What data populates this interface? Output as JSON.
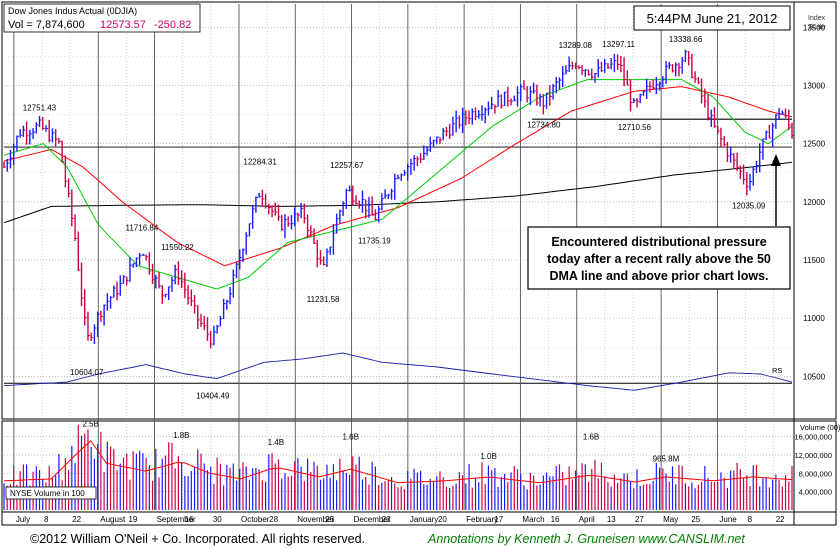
{
  "header": {
    "title": "Dow Jones Indus Actual",
    "symbol": "(0DJIA)",
    "vol_label": "Vol = 7,874,600",
    "price": "12573.57",
    "change": "-250.82",
    "timestamp": "5:44PM June 21, 2012",
    "scale_label_1": "Index",
    "scale_label_2": "Scale"
  },
  "annotation": {
    "line1": "Encountered distributional pressure",
    "line2": "today after a recent rally above the 50",
    "line3": "DMA line and above prior chart lows."
  },
  "footer": {
    "copyright": "©2012 William O'Neil + Co. Incorporated. All rights reserved.",
    "annotations": "Annotations by Kenneth J. Gruneisen www.CANSLIM.net"
  },
  "volume_panel": {
    "legend": "NYSE Volume in 100",
    "axis_title": "Volume (00)"
  },
  "rs_label": "RS",
  "colors": {
    "up_bar": "#1a1aff",
    "down_bar": "#cc0044",
    "ma50": "#00cc00",
    "ma200": "#000000",
    "ma_red": "#ff0000",
    "ma_pink": "#cc44cc",
    "rs_line": "#1a1aaa",
    "change": "#cc0066",
    "footer_green": "#008000"
  },
  "chart_data": {
    "type": "bar",
    "price_axis": {
      "ticks": [
        10500,
        11000,
        11500,
        12000,
        12500,
        13000,
        13500
      ],
      "tick_labels": [
        "10500",
        "11000",
        "11500",
        "12000",
        "12500",
        "13000",
        "13500"
      ],
      "ylim": [
        10150,
        13700
      ]
    },
    "volume_axis": {
      "ticks": [
        4000000,
        8000000,
        12000000,
        16000000
      ],
      "tick_labels": [
        "4,000,000",
        "8,000,000",
        "12,000,000",
        "16,000,000"
      ],
      "ylim": [
        0,
        19000000
      ]
    },
    "x_axis": {
      "tick_labels": [
        "July",
        "8",
        "22",
        "August",
        "19",
        "September",
        "16",
        "30",
        "October",
        "28",
        "November",
        "25",
        "December",
        "23",
        "January",
        "20",
        "February",
        "17",
        "March",
        "16",
        "April",
        "13",
        "27",
        "May",
        "25",
        "June",
        "8",
        "22"
      ]
    },
    "price_annotations": [
      {
        "label": "12751.43",
        "x": 0.045,
        "value": 12751
      },
      {
        "label": "10604.07",
        "x": 0.105,
        "value": 10604
      },
      {
        "label": "11716.84",
        "x": 0.175,
        "value": 11717
      },
      {
        "label": "11550.22",
        "x": 0.22,
        "value": 11550
      },
      {
        "label": "10404.49",
        "x": 0.265,
        "value": 10404
      },
      {
        "label": "12284.31",
        "x": 0.325,
        "value": 12284
      },
      {
        "label": "11231.58",
        "x": 0.405,
        "value": 11232
      },
      {
        "label": "12257.67",
        "x": 0.435,
        "value": 12258
      },
      {
        "label": "11735.19",
        "x": 0.47,
        "value": 11735
      },
      {
        "label": "12734.80",
        "x": 0.685,
        "value": 12735
      },
      {
        "label": "13289.08",
        "x": 0.725,
        "value": 13289
      },
      {
        "label": "13297.11",
        "x": 0.78,
        "value": 13297
      },
      {
        "label": "12710.56",
        "x": 0.8,
        "value": 12711
      },
      {
        "label": "13338.66",
        "x": 0.865,
        "value": 13339
      },
      {
        "label": "12035.09",
        "x": 0.945,
        "value": 12035
      }
    ],
    "volume_annotations": [
      {
        "label": "2.5B",
        "x": 0.11,
        "value": 17800000
      },
      {
        "label": "1.8B",
        "x": 0.225,
        "value": 15300000
      },
      {
        "label": "1.4B",
        "x": 0.345,
        "value": 13800000
      },
      {
        "label": "1.6B",
        "x": 0.44,
        "value": 15000000
      },
      {
        "label": "1.0B",
        "x": 0.615,
        "value": 10700000
      },
      {
        "label": "1.6B",
        "x": 0.745,
        "value": 15000000
      },
      {
        "label": "965.8M",
        "x": 0.84,
        "value": 10200000
      }
    ],
    "price_keypoints": [
      [
        0.0,
        12300
      ],
      [
        0.02,
        12600
      ],
      [
        0.045,
        12650
      ],
      [
        0.07,
        12500
      ],
      [
        0.09,
        11700
      ],
      [
        0.105,
        10800
      ],
      [
        0.125,
        11100
      ],
      [
        0.15,
        11300
      ],
      [
        0.175,
        11600
      ],
      [
        0.2,
        11200
      ],
      [
        0.22,
        11400
      ],
      [
        0.245,
        11000
      ],
      [
        0.265,
        10800
      ],
      [
        0.29,
        11300
      ],
      [
        0.31,
        11800
      ],
      [
        0.325,
        12100
      ],
      [
        0.35,
        11800
      ],
      [
        0.38,
        11900
      ],
      [
        0.405,
        11400
      ],
      [
        0.42,
        11800
      ],
      [
        0.435,
        12100
      ],
      [
        0.455,
        12000
      ],
      [
        0.47,
        11850
      ],
      [
        0.5,
        12250
      ],
      [
        0.53,
        12400
      ],
      [
        0.56,
        12600
      ],
      [
        0.59,
        12750
      ],
      [
        0.62,
        12850
      ],
      [
        0.66,
        12950
      ],
      [
        0.685,
        12850
      ],
      [
        0.7,
        13000
      ],
      [
        0.725,
        13200
      ],
      [
        0.75,
        13100
      ],
      [
        0.78,
        13200
      ],
      [
        0.8,
        12800
      ],
      [
        0.82,
        13000
      ],
      [
        0.845,
        13150
      ],
      [
        0.865,
        13250
      ],
      [
        0.88,
        13000
      ],
      [
        0.9,
        12650
      ],
      [
        0.925,
        12350
      ],
      [
        0.945,
        12150
      ],
      [
        0.96,
        12450
      ],
      [
        0.975,
        12650
      ],
      [
        0.985,
        12800
      ],
      [
        1.0,
        12600
      ]
    ],
    "ma50_keypoints": [
      [
        0.0,
        12400
      ],
      [
        0.05,
        12500
      ],
      [
        0.08,
        12300
      ],
      [
        0.12,
        11800
      ],
      [
        0.17,
        11450
      ],
      [
        0.22,
        11350
      ],
      [
        0.27,
        11250
      ],
      [
        0.31,
        11350
      ],
      [
        0.36,
        11650
      ],
      [
        0.42,
        11750
      ],
      [
        0.48,
        11850
      ],
      [
        0.55,
        12250
      ],
      [
        0.62,
        12650
      ],
      [
        0.68,
        12900
      ],
      [
        0.74,
        13050
      ],
      [
        0.8,
        13050
      ],
      [
        0.86,
        13050
      ],
      [
        0.9,
        12900
      ],
      [
        0.94,
        12600
      ],
      [
        0.97,
        12500
      ],
      [
        1.0,
        12650
      ]
    ],
    "ma200_keypoints": [
      [
        0.0,
        11820
      ],
      [
        0.06,
        11960
      ],
      [
        0.15,
        11970
      ],
      [
        0.25,
        11975
      ],
      [
        0.35,
        11960
      ],
      [
        0.45,
        11970
      ],
      [
        0.55,
        12000
      ],
      [
        0.65,
        12050
      ],
      [
        0.75,
        12130
      ],
      [
        0.85,
        12230
      ],
      [
        0.95,
        12300
      ],
      [
        1.0,
        12340
      ]
    ],
    "ma_red_keypoints": [
      [
        0.0,
        12350
      ],
      [
        0.06,
        12450
      ],
      [
        0.1,
        12300
      ],
      [
        0.15,
        12000
      ],
      [
        0.22,
        11650
      ],
      [
        0.28,
        11450
      ],
      [
        0.35,
        11600
      ],
      [
        0.42,
        11800
      ],
      [
        0.5,
        11950
      ],
      [
        0.58,
        12200
      ],
      [
        0.65,
        12500
      ],
      [
        0.72,
        12780
      ],
      [
        0.8,
        12950
      ],
      [
        0.86,
        12990
      ],
      [
        0.92,
        12900
      ],
      [
        0.97,
        12780
      ],
      [
        1.0,
        12730
      ]
    ],
    "rs_keypoints": [
      [
        0.0,
        10420
      ],
      [
        0.08,
        10450
      ],
      [
        0.12,
        10520
      ],
      [
        0.18,
        10600
      ],
      [
        0.23,
        10520
      ],
      [
        0.27,
        10480
      ],
      [
        0.33,
        10620
      ],
      [
        0.38,
        10650
      ],
      [
        0.43,
        10700
      ],
      [
        0.48,
        10620
      ],
      [
        0.55,
        10580
      ],
      [
        0.62,
        10520
      ],
      [
        0.68,
        10470
      ],
      [
        0.74,
        10420
      ],
      [
        0.8,
        10380
      ],
      [
        0.86,
        10450
      ],
      [
        0.92,
        10530
      ],
      [
        0.96,
        10520
      ],
      [
        1.0,
        10450
      ]
    ],
    "horizontal_lines": [
      12710
    ],
    "volume_keypoints": [
      [
        0.0,
        7500000
      ],
      [
        0.06,
        8000000
      ],
      [
        0.09,
        14000000
      ],
      [
        0.11,
        17800000
      ],
      [
        0.13,
        12000000
      ],
      [
        0.18,
        10000000
      ],
      [
        0.225,
        12500000
      ],
      [
        0.26,
        9500000
      ],
      [
        0.3,
        8000000
      ],
      [
        0.345,
        11000000
      ],
      [
        0.4,
        8500000
      ],
      [
        0.44,
        10500000
      ],
      [
        0.5,
        7000000
      ],
      [
        0.56,
        7500000
      ],
      [
        0.615,
        8500000
      ],
      [
        0.68,
        7000000
      ],
      [
        0.745,
        9000000
      ],
      [
        0.8,
        7200000
      ],
      [
        0.84,
        8500000
      ],
      [
        0.9,
        7500000
      ],
      [
        0.95,
        8500000
      ],
      [
        1.0,
        7800000
      ]
    ]
  }
}
